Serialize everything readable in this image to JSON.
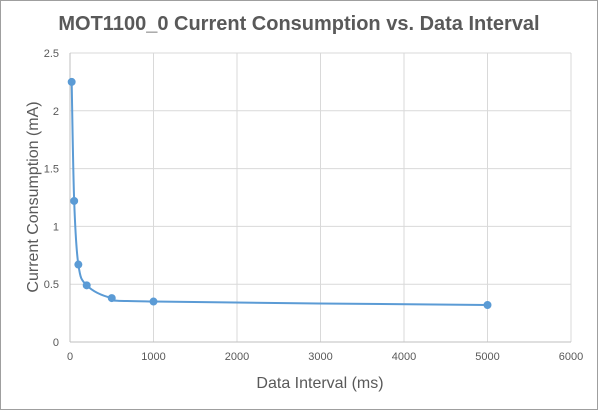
{
  "chart_data": {
    "type": "scatter",
    "title": "MOT1100_0 Current Consumption vs. Data Interval",
    "xlabel": "Data Interval (ms)",
    "ylabel": "Current Consumption (mA)",
    "xlim": [
      0,
      6000
    ],
    "ylim": [
      0,
      2.5
    ],
    "x_ticks": [
      0,
      1000,
      2000,
      3000,
      4000,
      5000,
      6000
    ],
    "y_ticks": [
      0,
      0.5,
      1,
      1.5,
      2,
      2.5
    ],
    "x_tick_labels": [
      "0",
      "1000",
      "2000",
      "3000",
      "4000",
      "5000",
      "6000"
    ],
    "y_tick_labels": [
      "0",
      "0.5",
      "1",
      "1.5",
      "2",
      "2.5"
    ],
    "grid": true,
    "legend": "none",
    "line_style": "smooth",
    "series": [
      {
        "x": [
          20,
          50,
          100,
          200,
          500,
          1000,
          5000
        ],
        "y": [
          2.25,
          1.22,
          0.67,
          0.49,
          0.38,
          0.35,
          0.32
        ],
        "color": "#5b9bd5"
      }
    ]
  }
}
